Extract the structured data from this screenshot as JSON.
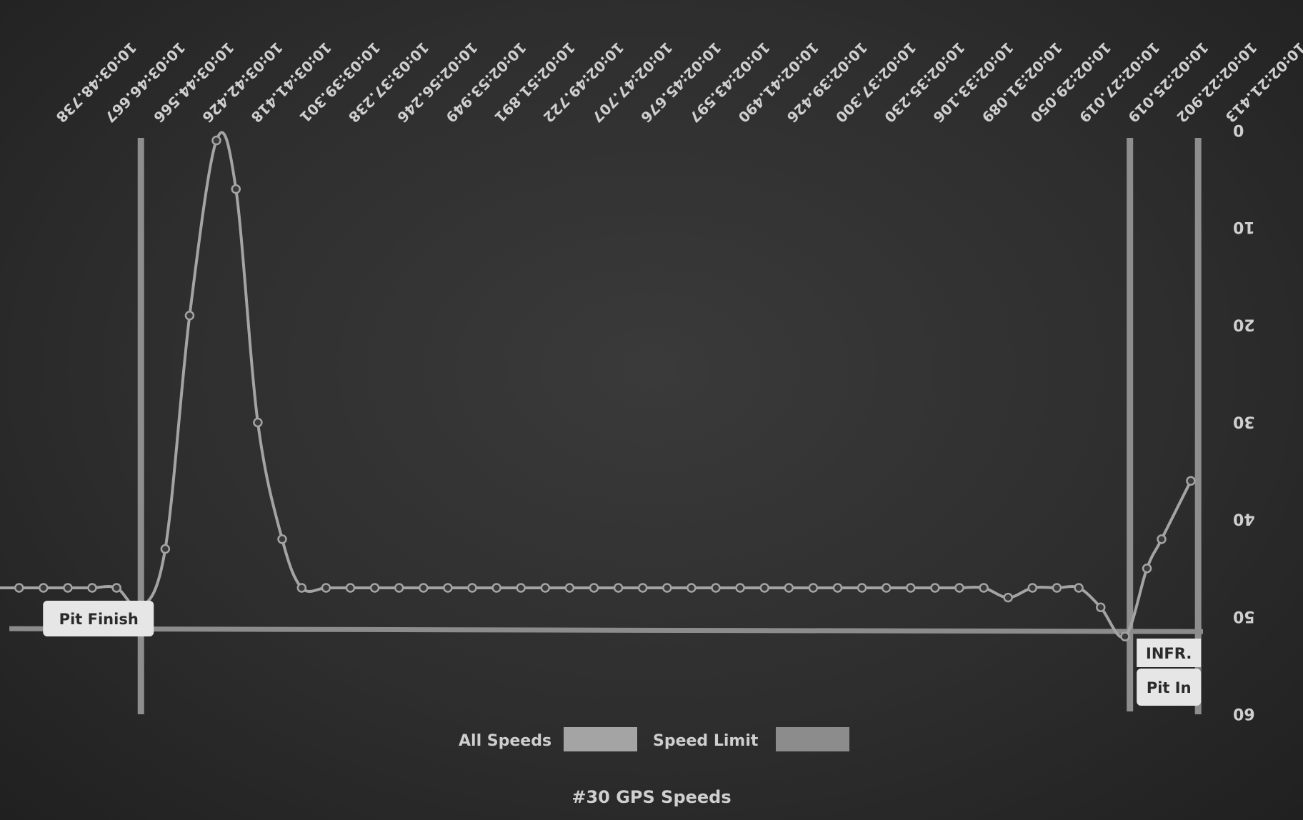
{
  "chart_data": {
    "type": "line",
    "title": "#30 GPS Speeds",
    "ylim": [
      0,
      60
    ],
    "y_ticks": [
      0,
      10,
      20,
      30,
      40,
      50,
      60
    ],
    "x_tick_labels": [
      "10:02:21.413",
      "10:02:22.902",
      "10:02:25.019",
      "10:02:27.019",
      "10:02:29.050",
      "10:02:31.089",
      "10:02:33.106",
      "10:02:35.230",
      "10:02:37.300",
      "10:02:39.426",
      "10:02:41.490",
      "10:02:43.597",
      "10:02:45.676",
      "10:02:47.707",
      "10:02:49.722",
      "10:02:51.891",
      "10:02:53.949",
      "10:02:56.246",
      "10:03:37.238",
      "10:03:39.301",
      "10:03:41.418",
      "10:03:42.426",
      "10:03:44.566",
      "10:03:46.667",
      "10:03:48.738"
    ],
    "series": [
      {
        "name": "Speed Limit",
        "color": "#8c8c8c",
        "points": [
          [
            0,
            51.5
          ],
          [
            49,
            51.2
          ]
        ]
      },
      {
        "name": "All Speeds",
        "color": "#a4a4a4",
        "points": [
          [
            0.5,
            36.0
          ],
          [
            1.7,
            42.0
          ],
          [
            2.3,
            45.0
          ],
          [
            3.2,
            52.0
          ],
          [
            4.2,
            49.0
          ],
          [
            5.1,
            47.0
          ],
          [
            6.0,
            47.0
          ],
          [
            7.0,
            47.0
          ],
          [
            8.0,
            48.0
          ],
          [
            9.0,
            47.0
          ],
          [
            10.0,
            47.0
          ],
          [
            11.0,
            47.0
          ],
          [
            12.0,
            47.0
          ],
          [
            13.0,
            47.0
          ],
          [
            14.0,
            47.0
          ],
          [
            15.0,
            47.0
          ],
          [
            16.0,
            47.0
          ],
          [
            17.0,
            47.0
          ],
          [
            18.0,
            47.0
          ],
          [
            19.0,
            47.0
          ],
          [
            20.0,
            47.0
          ],
          [
            21.0,
            47.0
          ],
          [
            22.0,
            47.0
          ],
          [
            23.0,
            47.0
          ],
          [
            24.0,
            47.0
          ],
          [
            25.0,
            47.0
          ],
          [
            26.0,
            47.0
          ],
          [
            27.0,
            47.0
          ],
          [
            28.0,
            47.0
          ],
          [
            29.0,
            47.0
          ],
          [
            30.0,
            47.0
          ],
          [
            31.0,
            47.0
          ],
          [
            32.0,
            47.0
          ],
          [
            33.0,
            47.0
          ],
          [
            34.0,
            47.0
          ],
          [
            35.0,
            47.0
          ],
          [
            36.0,
            47.0
          ],
          [
            37.0,
            47.0
          ],
          [
            37.8,
            42.0
          ],
          [
            38.8,
            30.0
          ],
          [
            39.7,
            6.0
          ],
          [
            40.5,
            1.0
          ],
          [
            41.6,
            19.0
          ],
          [
            42.6,
            43.0
          ],
          [
            43.6,
            49.0
          ],
          [
            44.6,
            47.0
          ],
          [
            45.6,
            47.0
          ],
          [
            46.6,
            47.0
          ],
          [
            47.6,
            47.0
          ],
          [
            48.6,
            47.0
          ],
          [
            49.6,
            47.0
          ]
        ]
      }
    ],
    "flags": [
      {
        "label": "Pit In",
        "label2": "INFR.",
        "x": 0.2,
        "x2": 3.0
      },
      {
        "label": "Pit Finish",
        "x": 43.6,
        "x2": 51.4
      }
    ],
    "legend": [
      "Speed Limit",
      "All Speeds"
    ]
  }
}
